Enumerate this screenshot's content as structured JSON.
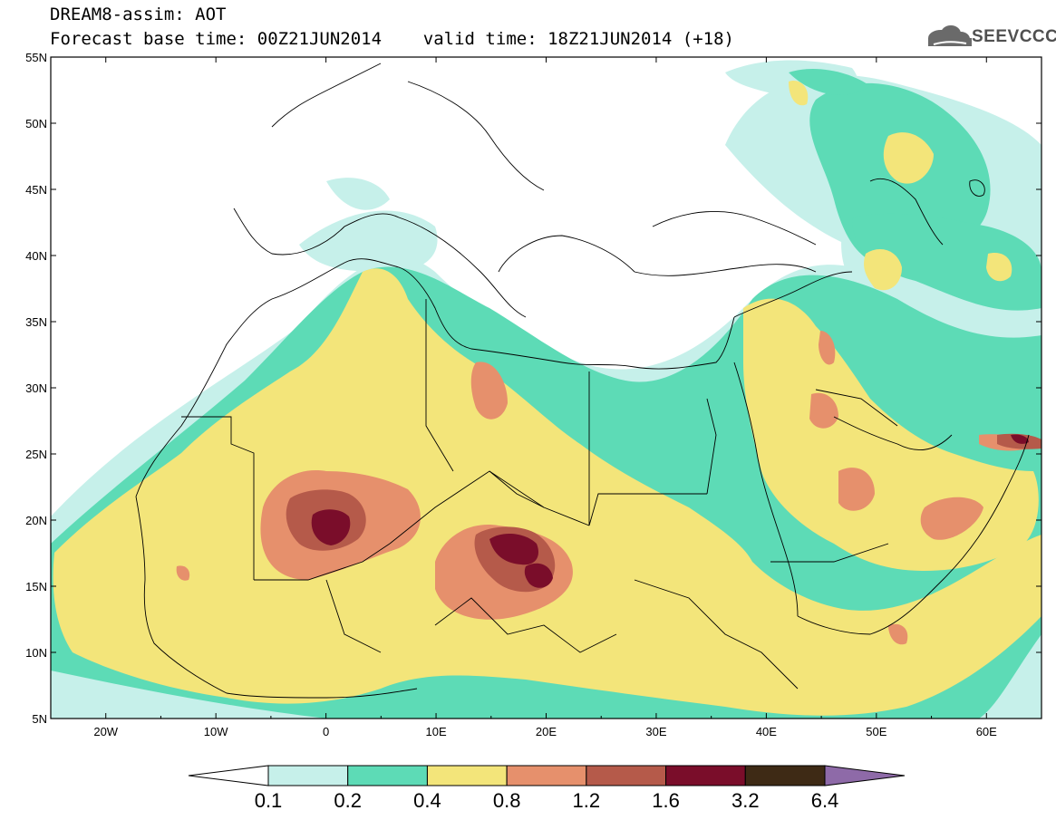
{
  "header": {
    "line1": "DREAM8-assim: AOT",
    "line2": "Forecast base time: 00Z21JUN2014    valid time: 18Z21JUN2014 (+18)",
    "logo_text": "SEEVCCC"
  },
  "map": {
    "lon_range": [
      -25,
      65
    ],
    "lat_range": [
      5,
      55
    ],
    "lon_ticks": [
      "20W",
      "10W",
      "0",
      "10E",
      "20E",
      "30E",
      "40E",
      "50E",
      "60E"
    ],
    "lat_ticks": [
      "5N",
      "10N",
      "15N",
      "20N",
      "25N",
      "30N",
      "35N",
      "40N",
      "45N",
      "50N",
      "55N"
    ]
  },
  "colorbar": {
    "labels": [
      "0.1",
      "0.2",
      "0.4",
      "0.8",
      "1.2",
      "1.6",
      "3.2",
      "6.4"
    ],
    "colors": [
      "#ffffff",
      "#c6f0ea",
      "#5ddbb6",
      "#f3e57a",
      "#e6906c",
      "#b55a4a",
      "#7a0d2a",
      "#3e2a15",
      "#8e6aa8"
    ]
  },
  "shading_colors": {
    "lt": "#c6f0ea",
    "tl": "#5ddbb6",
    "ye": "#f3e57a",
    "or": "#e6906c",
    "br": "#b55a4a",
    "mr": "#7a0d2a"
  }
}
